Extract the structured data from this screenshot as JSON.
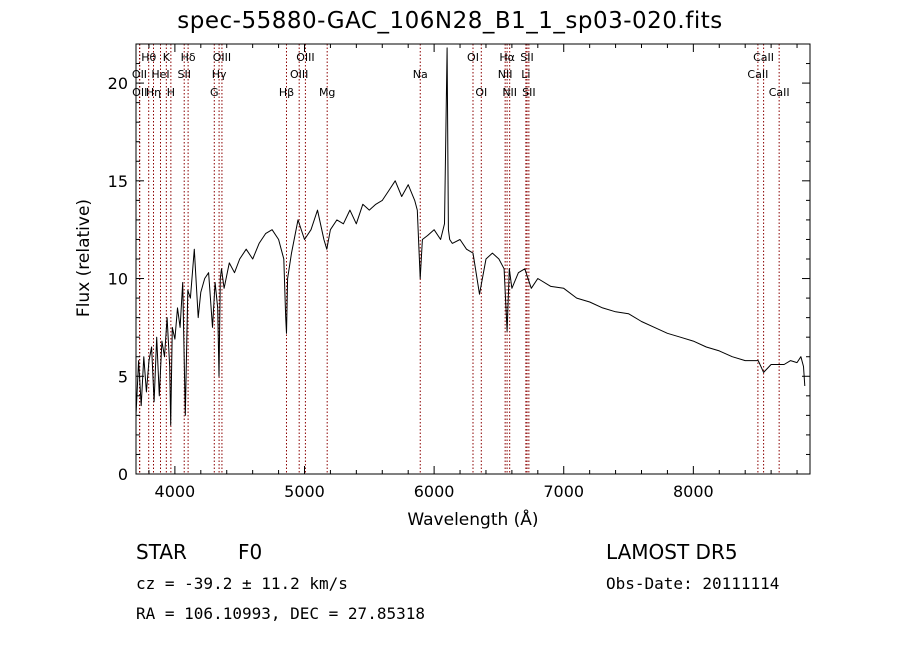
{
  "title": "spec-55880-GAC_106N28_B1_1_sp03-020.fits",
  "footer": {
    "class_label": "STAR",
    "subclass_label": "F0",
    "survey": "LAMOST  DR5",
    "redshift": "cz = -39.2 ± 11.2 km/s",
    "obs_date": "Obs-Date: 20111114",
    "coords": "RA = 106.10993, DEC =  27.85318"
  },
  "chart_data": {
    "type": "line",
    "title": "spec-55880-GAC_106N28_B1_1_sp03-020.fits",
    "xlabel": "Wavelength (Å)",
    "ylabel": "Flux (relative)",
    "xlim": [
      3700,
      8900
    ],
    "ylim": [
      0,
      22
    ],
    "x_ticks": [
      4000,
      5000,
      6000,
      7000,
      8000
    ],
    "y_ticks": [
      0,
      5,
      10,
      15,
      20
    ],
    "grid": false,
    "legend": "none",
    "series": [
      {
        "color": "#000000",
        "x": [
          3700,
          3720,
          3740,
          3760,
          3780,
          3800,
          3820,
          3840,
          3860,
          3880,
          3900,
          3920,
          3940,
          3960,
          3968,
          3980,
          4000,
          4020,
          4040,
          4060,
          4080,
          4100,
          4120,
          4150,
          4180,
          4200,
          4230,
          4260,
          4290,
          4310,
          4330,
          4340,
          4350,
          4360,
          4380,
          4420,
          4460,
          4500,
          4550,
          4600,
          4650,
          4700,
          4750,
          4800,
          4840,
          4855,
          4861,
          4870,
          4900,
          4950,
          5000,
          5050,
          5100,
          5150,
          5172,
          5200,
          5250,
          5300,
          5350,
          5400,
          5450,
          5500,
          5550,
          5600,
          5650,
          5700,
          5750,
          5800,
          5850,
          5870,
          5893,
          5910,
          5950,
          6000,
          6050,
          6080,
          6100,
          6110,
          6120,
          6140,
          6200,
          6250,
          6300,
          6350,
          6400,
          6450,
          6500,
          6540,
          6563,
          6580,
          6600,
          6650,
          6700,
          6750,
          6800,
          6900,
          7000,
          7100,
          7200,
          7300,
          7400,
          7500,
          7600,
          7700,
          7800,
          7900,
          8000,
          8100,
          8200,
          8300,
          8400,
          8500,
          8542,
          8600,
          8662,
          8700,
          8750,
          8800,
          8830,
          8850,
          8860
        ],
        "y": [
          3.0,
          5.8,
          3.5,
          6.0,
          4.2,
          5.8,
          6.5,
          3.7,
          7.0,
          4.0,
          6.8,
          6.0,
          8.0,
          5.5,
          2.5,
          7.5,
          6.9,
          8.5,
          7.5,
          9.8,
          3.0,
          9.4,
          9.0,
          11.5,
          8.0,
          9.3,
          10.0,
          10.3,
          7.5,
          9.8,
          8.5,
          5.0,
          10.0,
          10.5,
          9.5,
          10.8,
          10.3,
          11.0,
          11.5,
          11.0,
          11.8,
          12.3,
          12.5,
          12.0,
          11.0,
          8.0,
          7.2,
          10.0,
          11.3,
          13.0,
          12.0,
          12.5,
          13.5,
          12.0,
          11.5,
          12.5,
          13.0,
          12.8,
          13.5,
          12.8,
          13.8,
          13.5,
          13.8,
          14.0,
          14.5,
          15.0,
          14.2,
          14.8,
          14.0,
          13.5,
          10.0,
          12.0,
          12.2,
          12.5,
          12.0,
          12.8,
          21.8,
          12.5,
          12.0,
          11.8,
          12.0,
          11.5,
          11.3,
          9.2,
          11.0,
          11.3,
          11.0,
          10.5,
          7.3,
          10.5,
          9.5,
          10.3,
          10.5,
          9.5,
          10.0,
          9.6,
          9.5,
          9.0,
          8.8,
          8.5,
          8.3,
          8.2,
          7.8,
          7.5,
          7.2,
          7.0,
          6.8,
          6.5,
          6.3,
          6.0,
          5.8,
          5.8,
          5.2,
          5.6,
          5.6,
          5.6,
          5.8,
          5.7,
          6.0,
          5.5,
          4.5
        ]
      }
    ],
    "line_markers": [
      {
        "label": "Hθ",
        "wavelength": 3798,
        "row": 0
      },
      {
        "label": "OII",
        "wavelength": 3727,
        "row": 1
      },
      {
        "label": "OII",
        "wavelength": 3729,
        "row": 2
      },
      {
        "label": "Hη",
        "wavelength": 3835,
        "row": 2
      },
      {
        "label": "HeI",
        "wavelength": 3889,
        "row": 1
      },
      {
        "label": "K",
        "wavelength": 3934,
        "row": 0
      },
      {
        "label": "H",
        "wavelength": 3969,
        "row": 2
      },
      {
        "label": "Hδ",
        "wavelength": 4102,
        "row": 0
      },
      {
        "label": "SII",
        "wavelength": 4072,
        "row": 1
      },
      {
        "label": "OIII",
        "wavelength": 4363,
        "row": 0
      },
      {
        "label": "Hγ",
        "wavelength": 4341,
        "row": 1
      },
      {
        "label": "G",
        "wavelength": 4304,
        "row": 2
      },
      {
        "label": "Hβ",
        "wavelength": 4861,
        "row": 2
      },
      {
        "label": "OIII",
        "wavelength": 5007,
        "row": 0
      },
      {
        "label": "OIII",
        "wavelength": 4959,
        "row": 1
      },
      {
        "label": "Mg",
        "wavelength": 5175,
        "row": 2
      },
      {
        "label": "Na",
        "wavelength": 5893,
        "row": 1
      },
      {
        "label": "OI",
        "wavelength": 6300,
        "row": 0
      },
      {
        "label": "OI",
        "wavelength": 6364,
        "row": 2
      },
      {
        "label": "Hα",
        "wavelength": 6563,
        "row": 0
      },
      {
        "label": "NII",
        "wavelength": 6548,
        "row": 1
      },
      {
        "label": "NII",
        "wavelength": 6583,
        "row": 2
      },
      {
        "label": "SII",
        "wavelength": 6717,
        "row": 0
      },
      {
        "label": "Li",
        "wavelength": 6708,
        "row": 1
      },
      {
        "label": "SII",
        "wavelength": 6731,
        "row": 2
      },
      {
        "label": "CaII",
        "wavelength": 8542,
        "row": 0
      },
      {
        "label": "CaII",
        "wavelength": 8498,
        "row": 1
      },
      {
        "label": "CaII",
        "wavelength": 8662,
        "row": 2
      }
    ],
    "marker_color": "#8b0000"
  }
}
